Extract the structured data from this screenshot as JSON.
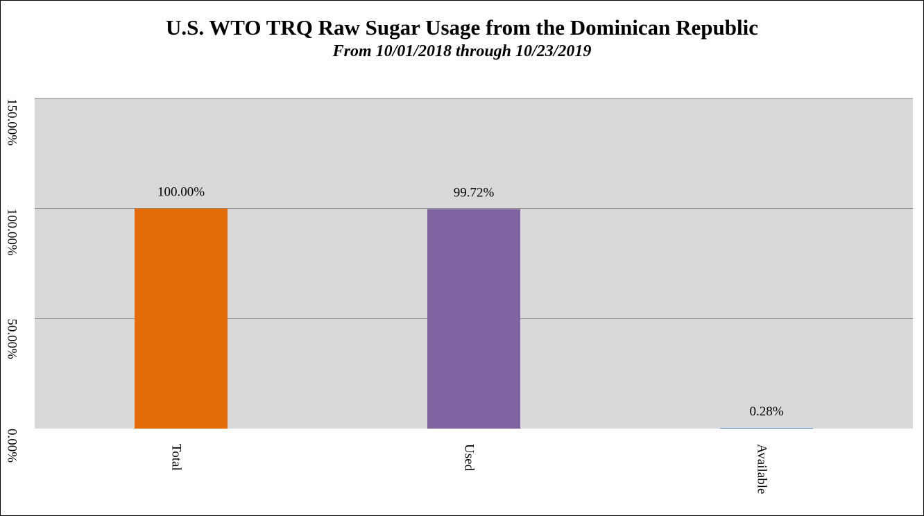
{
  "chart_data": {
    "type": "bar",
    "title": "U.S. WTO TRQ Raw Sugar Usage from the Dominican Republic",
    "subtitle": "From 10/01/2018 through 10/23/2019",
    "categories": [
      "Total",
      "Used",
      "Available"
    ],
    "values": [
      100.0,
      99.72,
      0.28
    ],
    "data_labels": [
      "100.00%",
      "99.72%",
      "0.28%"
    ],
    "bar_colors": [
      "#E36C09",
      "#8064A2",
      "#4F81BD"
    ],
    "ylim": [
      0,
      150
    ],
    "yticks": [
      0,
      50,
      100,
      150
    ],
    "ytick_labels": [
      "0.00%",
      "50.00%",
      "100.00%",
      "150.00%"
    ],
    "grid": true,
    "plot_background": "#D9D9D9",
    "grid_color": "#808080",
    "legend": "none"
  }
}
